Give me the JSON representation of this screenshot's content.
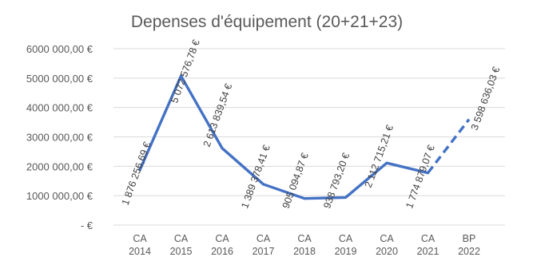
{
  "chart_data": {
    "type": "line",
    "title": "Depenses d'équipement (20+21+23)",
    "xlabel": "",
    "ylabel": "",
    "categories": [
      [
        "CA",
        "2014"
      ],
      [
        "CA",
        "2015"
      ],
      [
        "CA",
        "2016"
      ],
      [
        "CA",
        "2017"
      ],
      [
        "CA",
        "2018"
      ],
      [
        "CA",
        "2019"
      ],
      [
        "CA",
        "2020"
      ],
      [
        "CA",
        "2021"
      ],
      [
        "BP",
        "2022"
      ]
    ],
    "values": [
      1876256.69,
      5072576.78,
      2613839.54,
      1389378.41,
      905094.87,
      938793.2,
      2112715.21,
      1774879.07,
      3598636.03
    ],
    "data_labels": [
      "1 876 256,69 €",
      "5 072 576,78 €",
      "2 613 839,54 €",
      "1 389 378,41 €",
      "905 094,87 €",
      "938 793,20 €",
      "2 112 715,21 €",
      "1 774 879,07 €",
      "3 598 636,03 €"
    ],
    "yticks": [
      {
        "value": 0,
        "label": "-   €"
      },
      {
        "value": 1000000,
        "label": "1000 000,00 €"
      },
      {
        "value": 2000000,
        "label": "2000 000,00 €"
      },
      {
        "value": 3000000,
        "label": "3000 000,00 €"
      },
      {
        "value": 4000000,
        "label": "4000 000,00 €"
      },
      {
        "value": 5000000,
        "label": "5000 000,00 €"
      },
      {
        "value": 6000000,
        "label": "6000 000,00 €"
      }
    ],
    "ylim": [
      0,
      6000000
    ],
    "grid": true,
    "legend": "none",
    "dashed_from_index": 7,
    "line_color": "#4472c4"
  }
}
